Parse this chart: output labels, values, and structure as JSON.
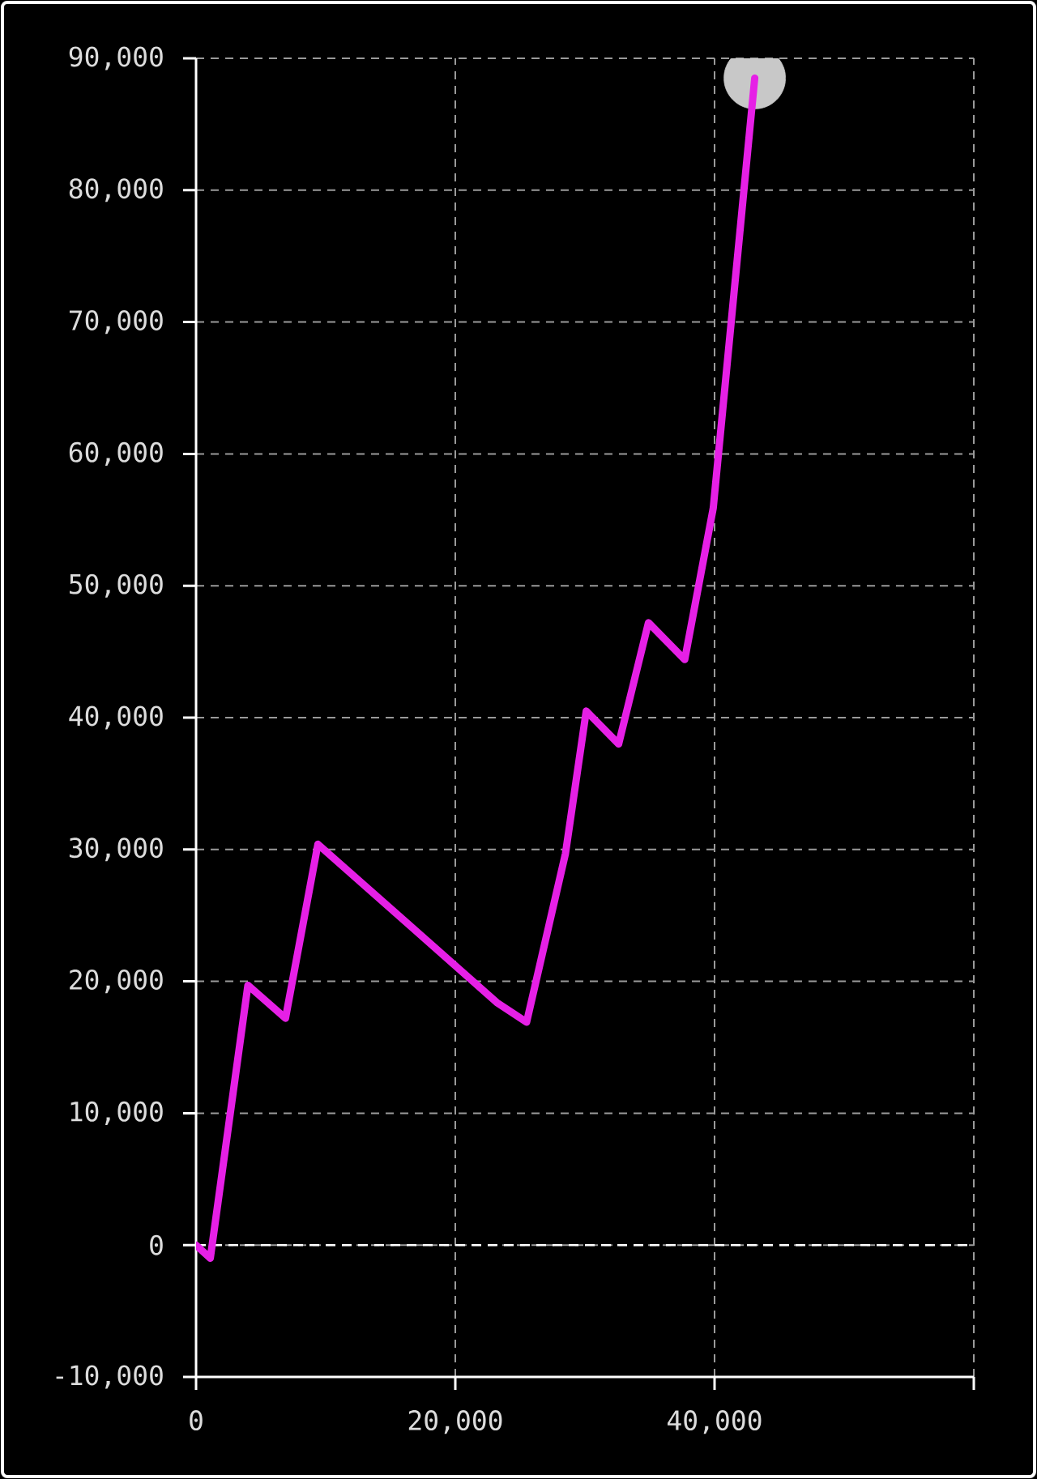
{
  "chart_data": {
    "type": "line",
    "xlim": [
      0,
      60000
    ],
    "ylim": [
      -10000,
      90000
    ],
    "xticks": [
      0,
      {
        "value": 20000,
        "label": "20,000"
      },
      {
        "value": 40000,
        "label": "40,000"
      },
      {
        "value": 60000,
        "label": null
      }
    ],
    "yticks": [
      {
        "value": -10000,
        "label": "-10,000"
      },
      0,
      {
        "value": 10000,
        "label": "10,000"
      },
      {
        "value": 20000,
        "label": "20,000"
      },
      {
        "value": 30000,
        "label": "30,000"
      },
      {
        "value": 40000,
        "label": "40,000"
      },
      {
        "value": 50000,
        "label": "50,000"
      },
      {
        "value": 60000,
        "label": "60,000"
      },
      {
        "value": 70000,
        "label": "70,000"
      },
      {
        "value": 80000,
        "label": "80,000"
      },
      {
        "value": 90000,
        "label": "90,000"
      }
    ],
    "grid": true,
    "ref_lines": [
      {
        "axis": "y",
        "value": 0,
        "color": "#ffffff",
        "line_style": "dashed"
      }
    ],
    "series": [
      {
        "type": "scatter",
        "marker": "circle",
        "color": "#c8c8c8",
        "x": [
          43100
        ],
        "values": [
          88500
        ]
      },
      {
        "color": "#e620e6",
        "x": [
          0,
          1100,
          4000,
          6900,
          9400,
          23200,
          25500,
          28500,
          30100,
          32600,
          34900,
          37700,
          39900,
          43100
        ],
        "values": [
          0,
          -1000,
          19700,
          17200,
          30400,
          18400,
          16900,
          29700,
          40500,
          38000,
          47200,
          44400,
          55900,
          88500
        ]
      }
    ]
  }
}
